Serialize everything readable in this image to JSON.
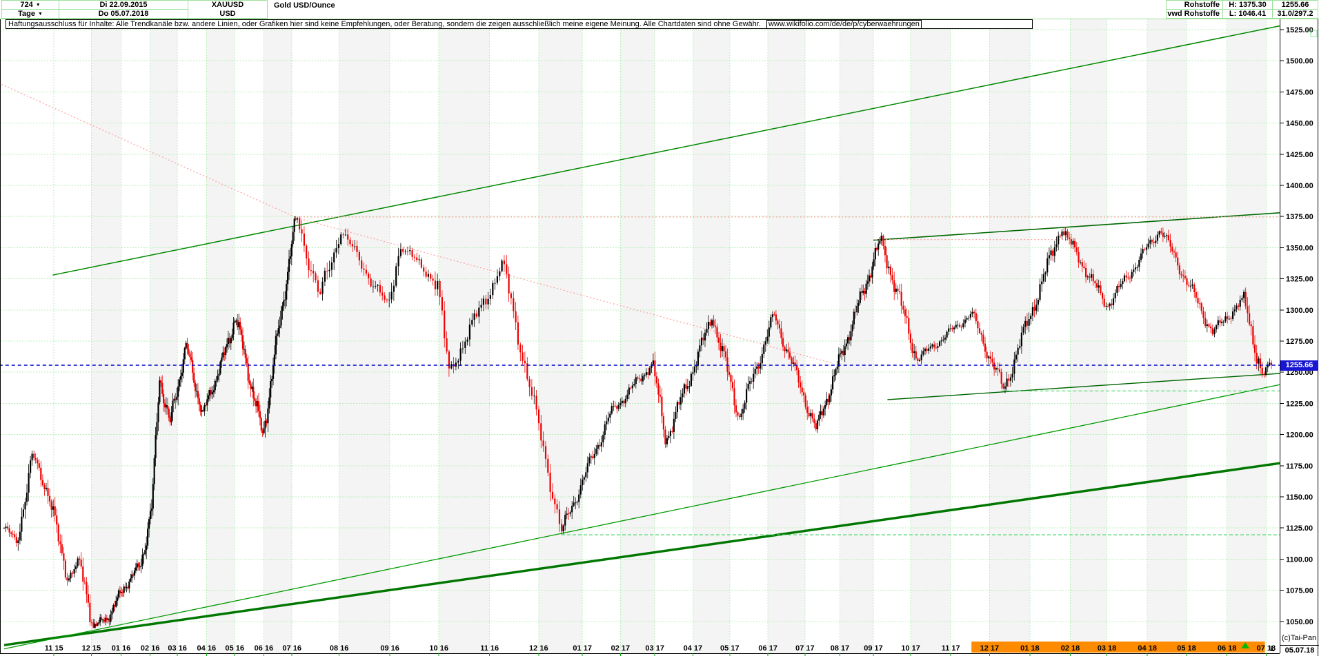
{
  "header": {
    "left": {
      "bars_count": "724",
      "timeframe": "Tage",
      "date_start": "Di 22.09.2015",
      "date_end": "Do 05.07.2018",
      "symbol": "XAUUSD",
      "currency": "USD",
      "instrument": "Gold USD/Ounce"
    },
    "right": {
      "category": "Rohstoffe",
      "source": "vwd Rohstoffe",
      "high": "H: 1375.30",
      "low": "L: 1046.41",
      "last": "1255.66",
      "ratio": "31.0/297.2"
    }
  },
  "disclaimer": {
    "text": "Haftungsausschluss für Inhalte: Alle Trendkanäle bzw. andere Linien, oder Grafiken hier sind keine Empfehlungen, oder Beratung, sondern die zeigen ausschließlich meine eigene Meinung. Alle Chartdaten sind ohne Gewähr. ",
    "link": "www.wikifolio.com/de/de/p/cyberwaehrungen"
  },
  "price_line": {
    "label": "1255.66"
  },
  "footer": {
    "copyright": "(c)Tai-Pan",
    "corner_date": "05.07.18",
    "l_marker": "L"
  },
  "chart_data": {
    "type": "candlestick",
    "title": "Gold USD/Ounce",
    "symbol": "XAUUSD",
    "timeframe": "Tage",
    "start_date": "22.09.2015",
    "end_date": "05.07.2018",
    "bars": 724,
    "high": 1375.3,
    "low": 1046.41,
    "last": 1255.66,
    "up_color": "#000000",
    "down_color": "#ee0000",
    "grid_color": "#b7efb7",
    "y_axis": {
      "min": 1050,
      "max": 1525,
      "step": 25
    },
    "x_axis": {
      "month_labels": [
        "11 15",
        "12 15",
        "01 16",
        "02 16",
        "03 16",
        "04 16",
        "05 16",
        "06 16",
        "07 16",
        "08 16",
        "09 16",
        "10 16",
        "11 16",
        "12 16",
        "01 17",
        "02 17",
        "03 17",
        "04 17",
        "05 17",
        "06 17",
        "07 17",
        "08 17",
        "09 17",
        "10 17",
        "11 17",
        "12 17",
        "01 18",
        "02 18",
        "03 18",
        "04 18",
        "05 18",
        "06 18",
        "07 18"
      ],
      "month_day_offsets": [
        40,
        70,
        101,
        132,
        161,
        192,
        222,
        253,
        283,
        314,
        345,
        375,
        406,
        436,
        467,
        498,
        526,
        557,
        587,
        618,
        648,
        679,
        710,
        740,
        771,
        801,
        832,
        863,
        891,
        922,
        952,
        983,
        1013
      ]
    },
    "anchors": [
      [
        0,
        1125
      ],
      [
        10,
        1114
      ],
      [
        23,
        1183
      ],
      [
        36,
        1152
      ],
      [
        45,
        1108
      ],
      [
        51,
        1085
      ],
      [
        60,
        1098
      ],
      [
        72,
        1046.4
      ],
      [
        86,
        1052
      ],
      [
        105,
        1078
      ],
      [
        122,
        1096
      ],
      [
        134,
        1142
      ],
      [
        142,
        1247
      ],
      [
        153,
        1208
      ],
      [
        170,
        1272
      ],
      [
        188,
        1216
      ],
      [
        212,
        1266
      ],
      [
        223,
        1295
      ],
      [
        252,
        1199
      ],
      [
        276,
        1320
      ],
      [
        288,
        1375.3
      ],
      [
        302,
        1310
      ],
      [
        315,
        1364
      ],
      [
        344,
        1302
      ],
      [
        351,
        1352
      ],
      [
        374,
        1322
      ],
      [
        381,
        1250
      ],
      [
        414,
        1337
      ],
      [
        450,
        1122
      ],
      [
        490,
        1217
      ],
      [
        524,
        1257
      ],
      [
        535,
        1195
      ],
      [
        573,
        1295
      ],
      [
        595,
        1214
      ],
      [
        623,
        1296
      ],
      [
        657,
        1204
      ],
      [
        717,
        1357
      ],
      [
        745,
        1260
      ],
      [
        787,
        1297
      ],
      [
        812,
        1236
      ],
      [
        856,
        1366
      ],
      [
        891,
        1303
      ],
      [
        932,
        1365
      ],
      [
        972,
        1282
      ],
      [
        996,
        1309
      ],
      [
        1010,
        1247
      ],
      [
        1017,
        1255.66
      ]
    ],
    "overlays": [
      {
        "name": "channel-upper-trendline",
        "style": "solid",
        "color": "#008800",
        "width": 1.5,
        "points": [
          [
            39,
            1328
          ],
          [
            1060,
            1528
          ]
        ]
      },
      {
        "name": "major-support-trendline-thick",
        "style": "solid",
        "color": "#007700",
        "width": 3.5,
        "points": [
          [
            0,
            1031
          ],
          [
            1045,
            1177
          ]
        ]
      },
      {
        "name": "support-trendline-thin",
        "style": "solid",
        "color": "#009900",
        "width": 1.3,
        "points": [
          [
            0,
            1028
          ],
          [
            1045,
            1240
          ]
        ]
      },
      {
        "name": "resistance-trendline-2017-2018",
        "style": "solid",
        "color": "#006600",
        "width": 1.6,
        "points": [
          [
            710,
            1356
          ],
          [
            1048,
            1378
          ]
        ]
      },
      {
        "name": "minor-support-trendline",
        "style": "solid",
        "color": "#006600",
        "width": 1.4,
        "points": [
          [
            722,
            1228
          ],
          [
            1048,
            1249
          ]
        ]
      },
      {
        "name": "downtrend-dotted",
        "style": "dotted",
        "color": "#ffa3a3",
        "width": 1.3,
        "points": [
          [
            -2,
            1481
          ],
          [
            288,
            1374
          ],
          [
            673,
            1257
          ]
        ]
      },
      {
        "name": "horizontal-resistance-1375-dotted",
        "style": "dotted",
        "color": "#ffa3a3",
        "width": 1.3,
        "points": [
          [
            288,
            1374.6
          ],
          [
            1060,
            1374.6
          ]
        ]
      },
      {
        "name": "horizontal-resistance-1356-dotted",
        "style": "dotted",
        "color": "#ffa3a3",
        "width": 1.3,
        "points": [
          [
            712,
            1356.5
          ],
          [
            862,
            1356.5
          ]
        ]
      },
      {
        "name": "horizontal-support-1120-dashed",
        "style": "dashed",
        "color": "#4ad66a",
        "width": 1.2,
        "points": [
          [
            450,
            1119.5
          ],
          [
            1060,
            1119.5
          ]
        ]
      },
      {
        "name": "horizontal-support-1235-dashed",
        "style": "dashed",
        "color": "#4ad66a",
        "width": 1.2,
        "points": [
          [
            810,
            1235
          ],
          [
            1060,
            1235
          ]
        ]
      },
      {
        "name": "last-price-line",
        "style": "dashblue",
        "color": "#0000cc",
        "width": 1.4,
        "points": [
          [
            -4,
            1255.66
          ],
          [
            1060,
            1255.66
          ]
        ]
      }
    ],
    "highlight_band": {
      "from_day": 787,
      "to_day": 1012,
      "color": "#ff8c00"
    },
    "marker_triangle_day": 997
  }
}
